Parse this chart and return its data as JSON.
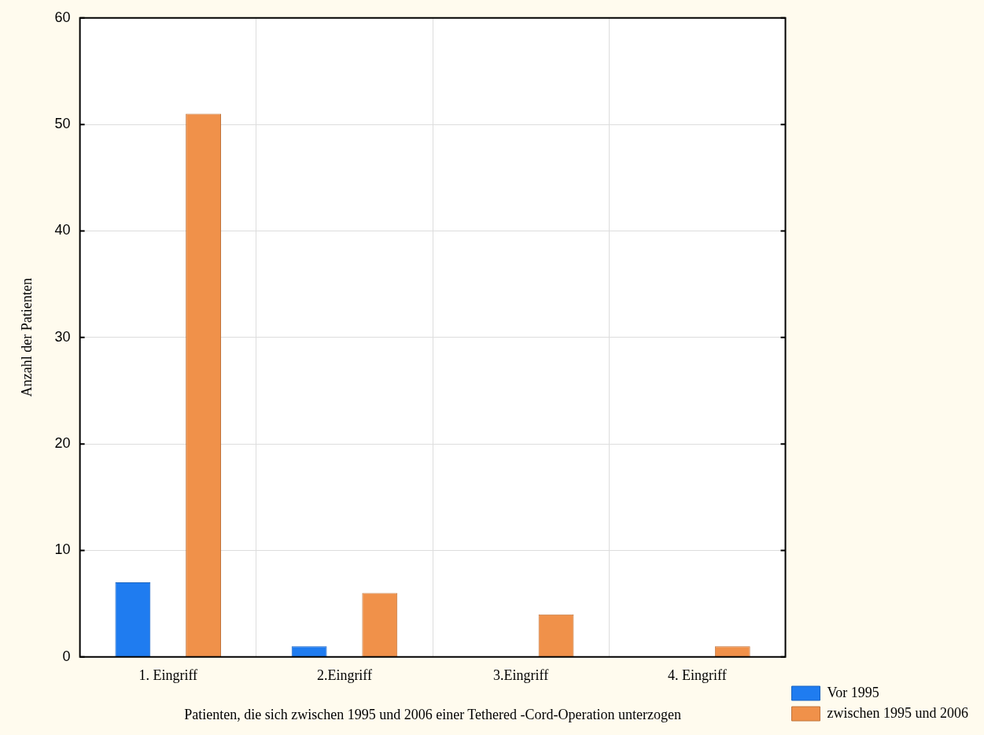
{
  "chart_data": {
    "type": "bar",
    "xlabel": "Patienten, die sich zwischen 1995 und 2006 einer Tethered -Cord-Operation unterzogen",
    "ylabel": "Anzahl der Patienten",
    "categories": [
      "1. Eingriff",
      "2.Eingriff",
      "3.Eingriff",
      "4. Eingriff"
    ],
    "series": [
      {
        "name": "Vor 1995",
        "color": "#1f7cf0",
        "values": [
          7,
          1,
          0,
          0
        ]
      },
      {
        "name": "zwischen 1995 und 2006",
        "color": "#f0914a",
        "values": [
          51,
          6,
          4,
          1
        ]
      }
    ],
    "ylim": [
      0,
      60
    ],
    "yticks": [
      0,
      10,
      20,
      30,
      40,
      50,
      60
    ],
    "grid": true,
    "legend": "bottom right"
  }
}
